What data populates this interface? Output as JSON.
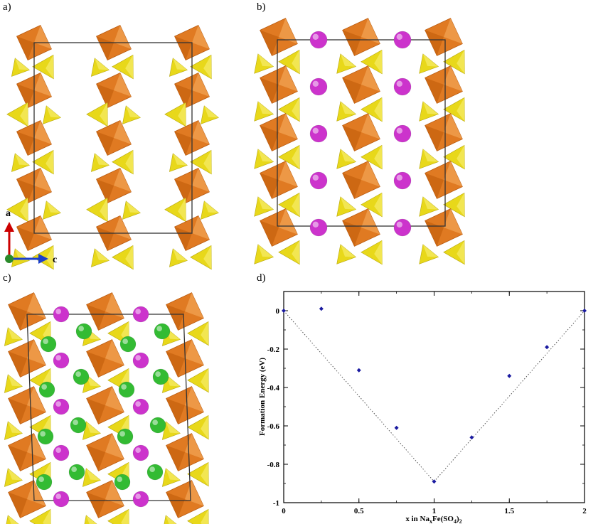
{
  "panels": {
    "a_label": "a)",
    "b_label": "b)",
    "c_label": "c)",
    "d_label": "d)"
  },
  "axes_indicator": {
    "vertical_label": "a",
    "horizontal_label": "c"
  },
  "colors": {
    "octahedra": "#e07a22",
    "tetrahedra": "#e8d81a",
    "sodium": "#cc33cc",
    "green_atom": "#33bb33",
    "axis_a_arrow": "#cc0000",
    "axis_c_arrow": "#1a3fcc",
    "axis_origin": "#2a8a2a",
    "data_points": "#1a1aa0",
    "hull_line": "#555555"
  },
  "chart_data": {
    "type": "scatter",
    "xlabel_main": "x in Na",
    "xlabel_sub1": "x",
    "xlabel_mid": "Fe(SO",
    "xlabel_sub2": "4",
    "xlabel_end": ")",
    "xlabel_sub3": "2",
    "ylabel": "Formation Energy (eV)",
    "xlim": [
      0,
      2
    ],
    "ylim": [
      -1,
      0.1
    ],
    "x_ticks": [
      "0",
      "0.5",
      "1",
      "1.5",
      "2"
    ],
    "y_ticks": [
      "0",
      "-0.2",
      "-0.4",
      "-0.6",
      "-0.8",
      "-1"
    ],
    "x_tick_values": [
      0,
      0.5,
      1,
      1.5,
      2
    ],
    "y_tick_values": [
      0,
      -0.2,
      -0.4,
      -0.6,
      -0.8,
      -1
    ],
    "points": [
      {
        "x": 0,
        "y": 0
      },
      {
        "x": 0.25,
        "y": 0.01
      },
      {
        "x": 0.5,
        "y": -0.31
      },
      {
        "x": 0.75,
        "y": -0.61
      },
      {
        "x": 1.0,
        "y": -0.89
      },
      {
        "x": 1.25,
        "y": -0.66
      },
      {
        "x": 1.5,
        "y": -0.34
      },
      {
        "x": 1.75,
        "y": -0.19
      },
      {
        "x": 2.0,
        "y": 0
      }
    ],
    "hull": [
      {
        "x": 0,
        "y": 0
      },
      {
        "x": 1.0,
        "y": -0.89
      },
      {
        "x": 2.0,
        "y": 0
      }
    ]
  }
}
